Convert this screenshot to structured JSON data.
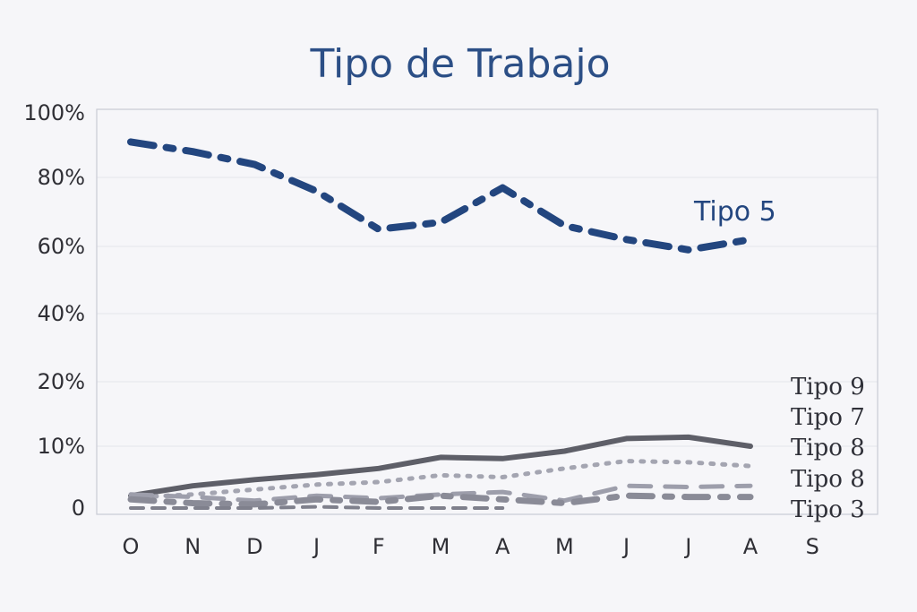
{
  "chart_data": {
    "type": "line",
    "title": "Tipo de Trabajo",
    "xlabel": "",
    "ylabel": "",
    "categories": [
      "O",
      "N",
      "D",
      "J",
      "F",
      "M",
      "A",
      "M",
      "J",
      "J",
      "A",
      "S"
    ],
    "y_ticks": [
      "0",
      "10%",
      "20%",
      "40%",
      "60%",
      "80%",
      "100%"
    ],
    "y_tick_values": [
      0,
      10,
      20,
      40,
      60,
      80,
      100
    ],
    "ylim": [
      0,
      100
    ],
    "grid": true,
    "series": [
      {
        "name": "Tipo 5",
        "color": "#23467f",
        "style": "dash-dot",
        "values": [
          91,
          88,
          84,
          76,
          65,
          67,
          77,
          66,
          62,
          59,
          62,
          null
        ]
      },
      {
        "name": "Tipo 9",
        "color": "#5e5f68",
        "style": "solid",
        "values": [
          2,
          3.6,
          4.6,
          5.4,
          6.4,
          8.2,
          8.0,
          9.2,
          11.2,
          11.4,
          10.0,
          null
        ]
      },
      {
        "name": "Tipo 7",
        "color": "#a4a5b1",
        "style": "dotted",
        "values": [
          1.7,
          2.2,
          3.0,
          3.8,
          4.2,
          5.3,
          5.0,
          6.4,
          7.6,
          7.4,
          6.8,
          null
        ]
      },
      {
        "name": "Tipo 8",
        "color": "#9d9eab",
        "style": "long-dash",
        "values": [
          2.2,
          1.8,
          1.2,
          2.0,
          1.6,
          2.2,
          2.6,
          1.2,
          3.6,
          3.4,
          3.6,
          null
        ]
      },
      {
        "name": "Tipo 8",
        "color": "#8a8b97",
        "style": "dash-dot",
        "values": [
          1.4,
          0.8,
          0.6,
          1.4,
          1.0,
          2.0,
          1.4,
          0.8,
          2.0,
          1.8,
          1.8,
          null
        ]
      },
      {
        "name": "Tipo 3",
        "color": "#7f808c",
        "style": "dash",
        "values": [
          0,
          0,
          0,
          0.2,
          0,
          0,
          0,
          null,
          null,
          null,
          null,
          null
        ]
      }
    ],
    "legend": "right, next to line ends"
  }
}
